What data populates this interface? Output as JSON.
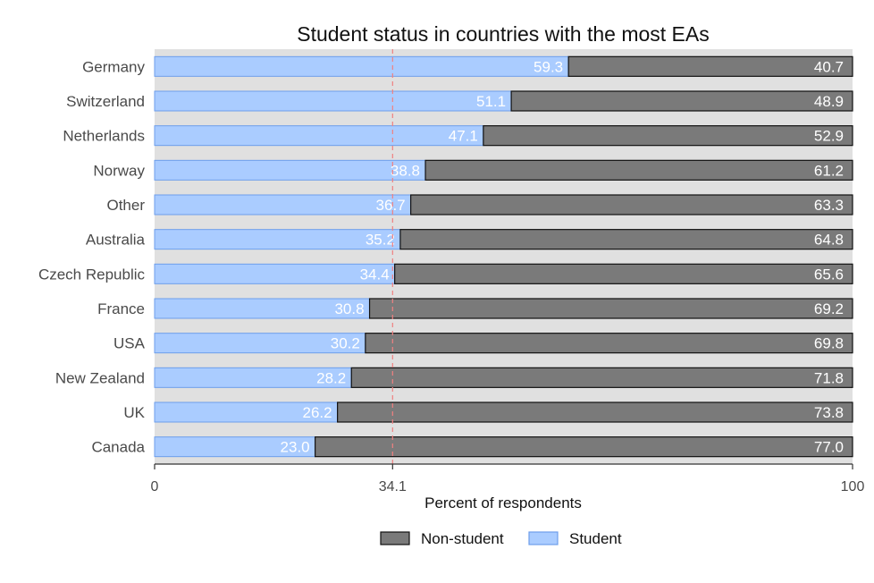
{
  "chart_data": {
    "type": "bar",
    "orientation": "horizontal",
    "stacked": true,
    "title": "Student status in countries with the most EAs",
    "xlabel": "Percent of respondents",
    "ylabel": "",
    "xlim": [
      0,
      100
    ],
    "xticks": [
      "0",
      "34.1",
      "100"
    ],
    "reference_line": {
      "value": 34.1,
      "style": "dashed",
      "color": "#f08080"
    },
    "categories": [
      "Germany",
      "Switzerland",
      "Netherlands",
      "Norway",
      "Other",
      "Australia",
      "Czech Republic",
      "France",
      "USA",
      "New Zealand",
      "UK",
      "Canada"
    ],
    "series": [
      {
        "name": "Student",
        "color": "#aaccff",
        "values": [
          59.3,
          51.1,
          47.1,
          38.8,
          36.7,
          35.2,
          34.4,
          30.8,
          30.2,
          28.2,
          26.2,
          23.0
        ]
      },
      {
        "name": "Non-student",
        "color": "#7a7a7a",
        "values": [
          40.7,
          48.9,
          52.9,
          61.2,
          63.3,
          64.8,
          65.6,
          69.2,
          69.8,
          71.8,
          73.8,
          77.0
        ]
      }
    ],
    "value_labels": {
      "Student": [
        "59.3",
        "51.1",
        "47.1",
        "38.8",
        "36.7",
        "35.2",
        "34.4",
        "30.8",
        "30.2",
        "28.2",
        "26.2",
        "23.0"
      ],
      "Non-student": [
        "40.7",
        "48.9",
        "52.9",
        "61.2",
        "63.3",
        "64.8",
        "65.6",
        "69.2",
        "69.8",
        "71.8",
        "73.8",
        "77.0"
      ]
    },
    "legend": {
      "placement": "bottom",
      "entries": [
        {
          "label": "Non-student",
          "color": "#7a7a7a"
        },
        {
          "label": "Student",
          "color": "#aaccff"
        }
      ]
    },
    "grid": false,
    "panel_background": "#e0e0e0"
  }
}
